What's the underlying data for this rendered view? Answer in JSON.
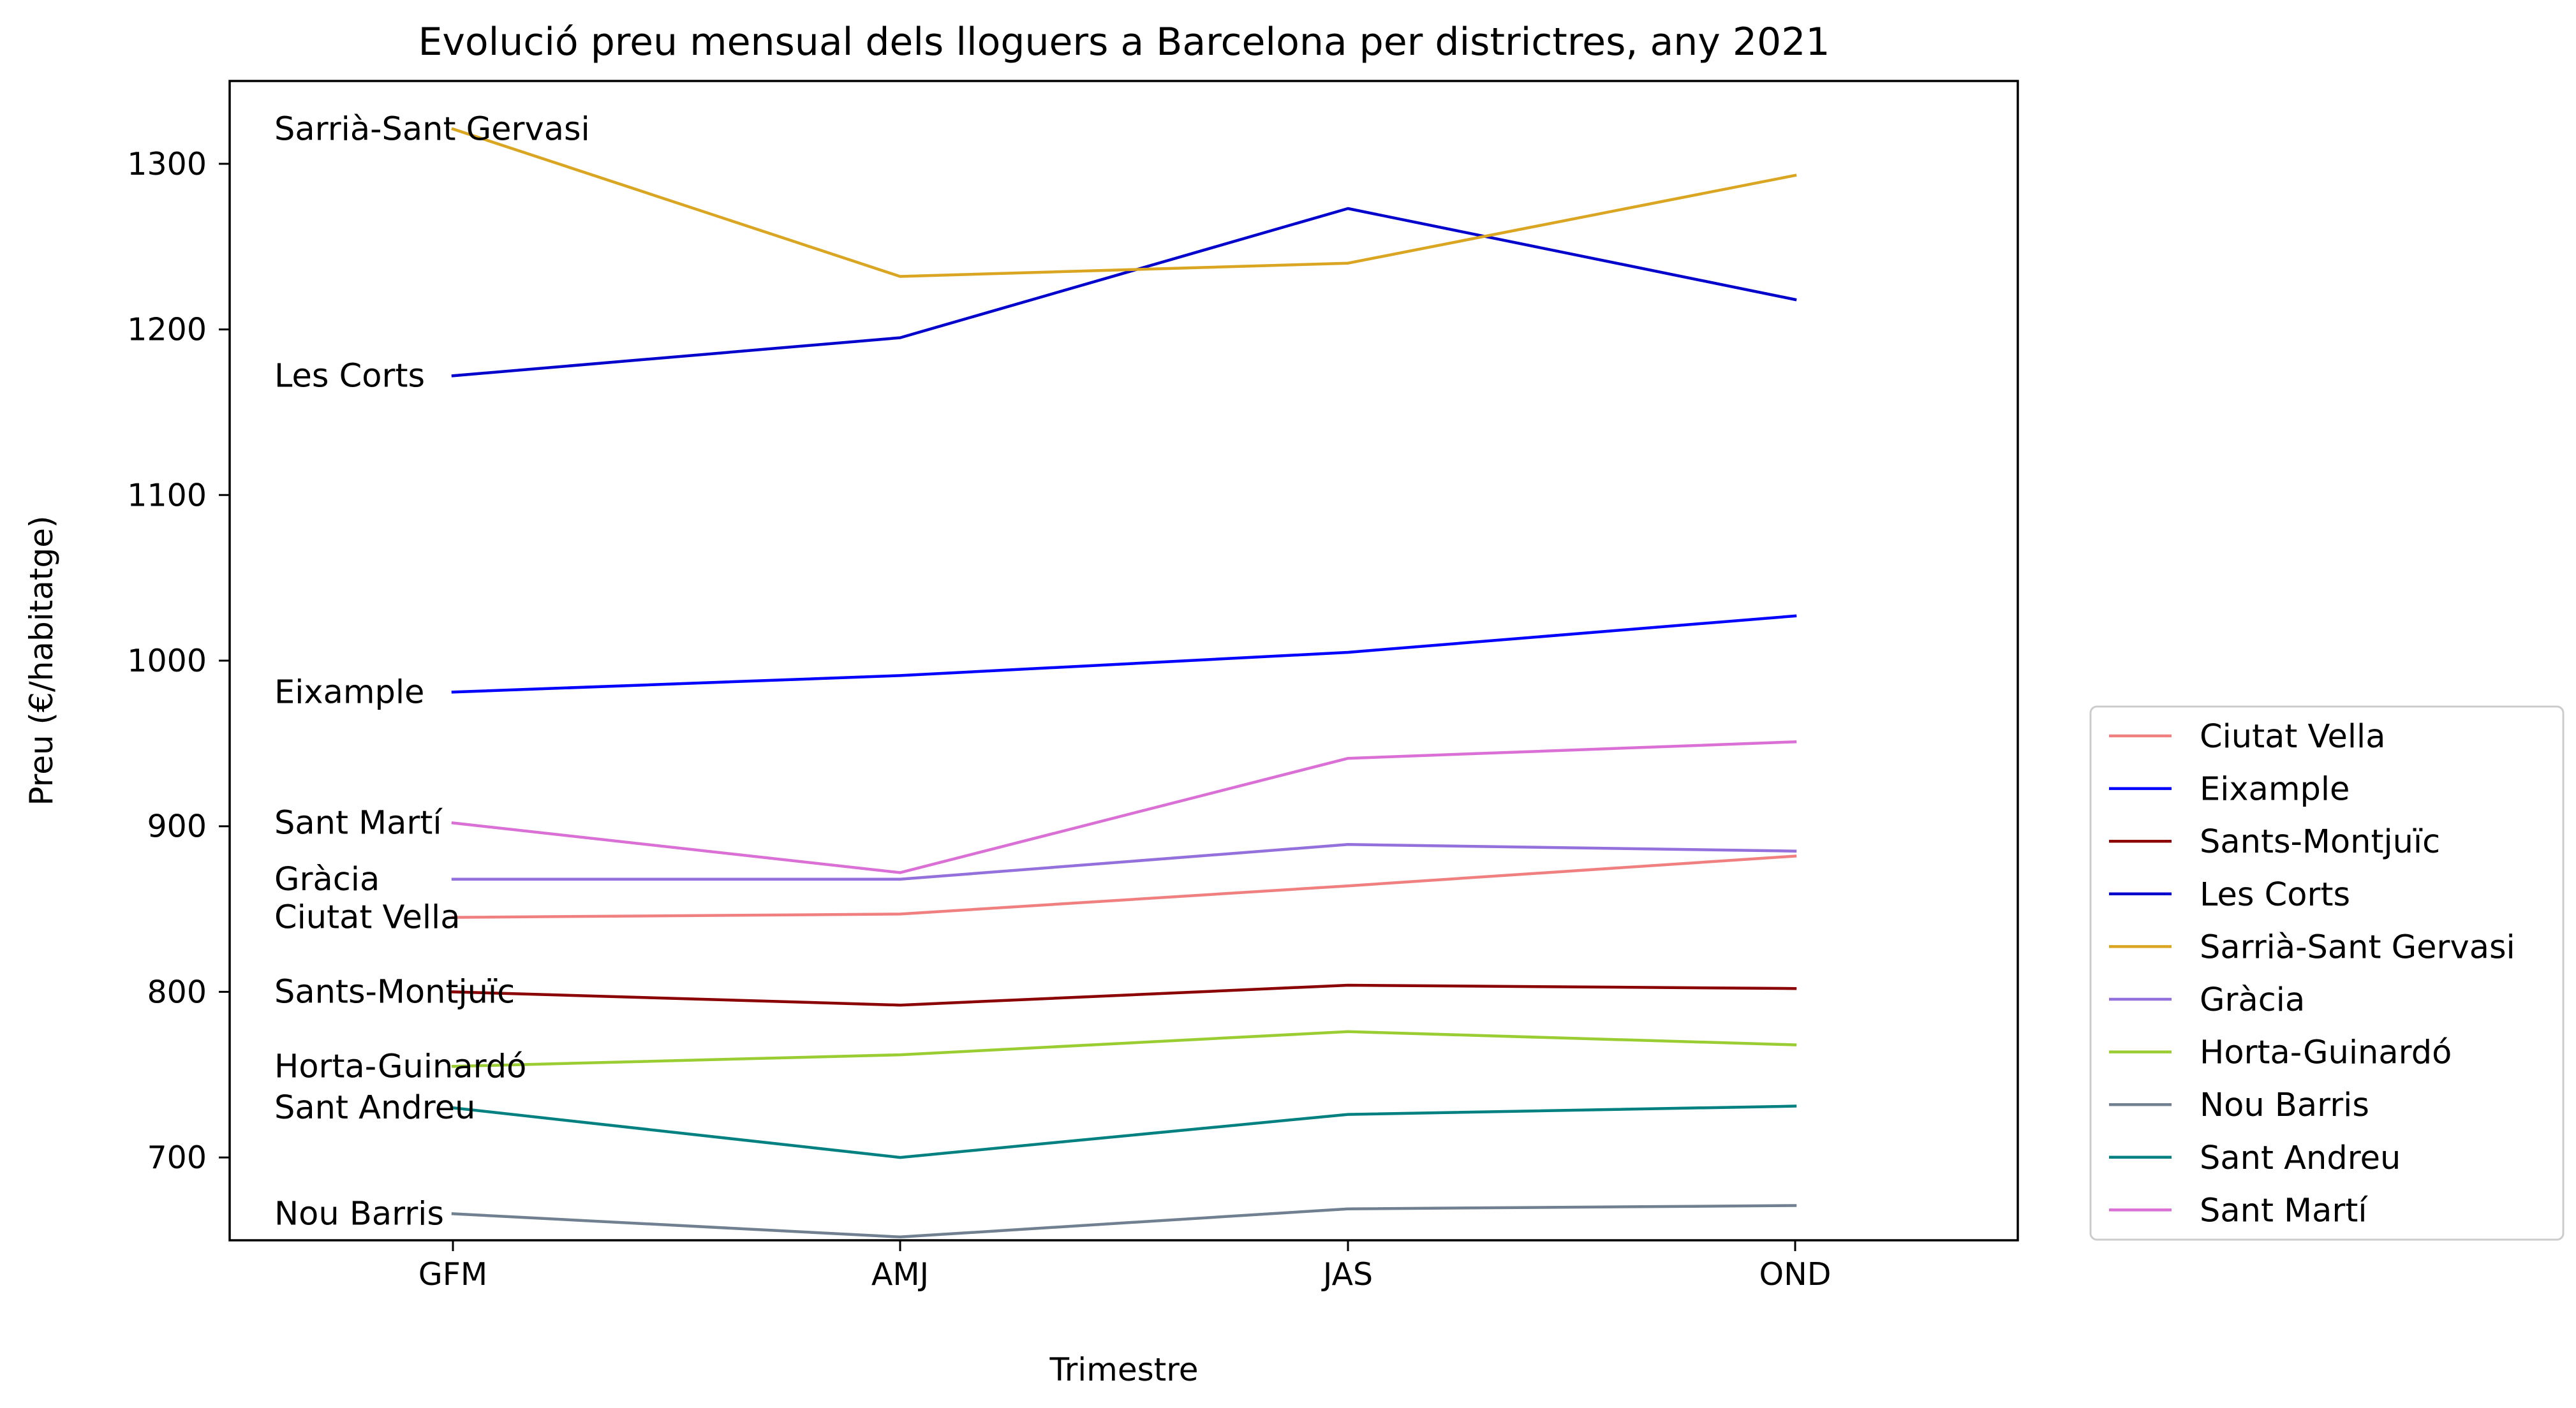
{
  "chart_data": {
    "type": "line",
    "title": "Evolució preu mensual dels lloguers a Barcelona per districtres, any 2021",
    "xlabel": "Trimestre",
    "ylabel": "Preu (€/habitatge)",
    "categories": [
      "GFM",
      "AMJ",
      "JAS",
      "OND"
    ],
    "ylim": [
      650,
      1350
    ],
    "yticks": [
      700,
      800,
      900,
      1000,
      1100,
      1200,
      1300
    ],
    "grid": false,
    "legend_position": "outside right, bottom",
    "series": [
      {
        "name": "Ciutat Vella",
        "color": "#F08080",
        "values": [
          845,
          847,
          864,
          882
        ]
      },
      {
        "name": "Eixample",
        "color": "#0000FF",
        "values": [
          981,
          991,
          1005,
          1027
        ]
      },
      {
        "name": "Sants-Montjuïc",
        "color": "#8B0000",
        "values": [
          800,
          792,
          804,
          802
        ]
      },
      {
        "name": "Les Corts",
        "color": "#0000CD",
        "values": [
          1172,
          1195,
          1273,
          1218
        ]
      },
      {
        "name": "Sarrià-Sant Gervasi",
        "color": "#DAA520",
        "values": [
          1321,
          1232,
          1240,
          1293
        ]
      },
      {
        "name": "Gràcia",
        "color": "#9370DB",
        "values": [
          868,
          868,
          889,
          885
        ]
      },
      {
        "name": "Horta-Guinardó",
        "color": "#9ACD32",
        "values": [
          755,
          762,
          776,
          768
        ]
      },
      {
        "name": "Nou Barris",
        "color": "#708090",
        "values": [
          666,
          652,
          669,
          671
        ]
      },
      {
        "name": "Sant Andreu",
        "color": "#008080",
        "values": [
          730,
          700,
          726,
          731
        ]
      },
      {
        "name": "Sant Martí",
        "color": "#DA70D6",
        "values": [
          902,
          872,
          941,
          951
        ]
      }
    ]
  }
}
